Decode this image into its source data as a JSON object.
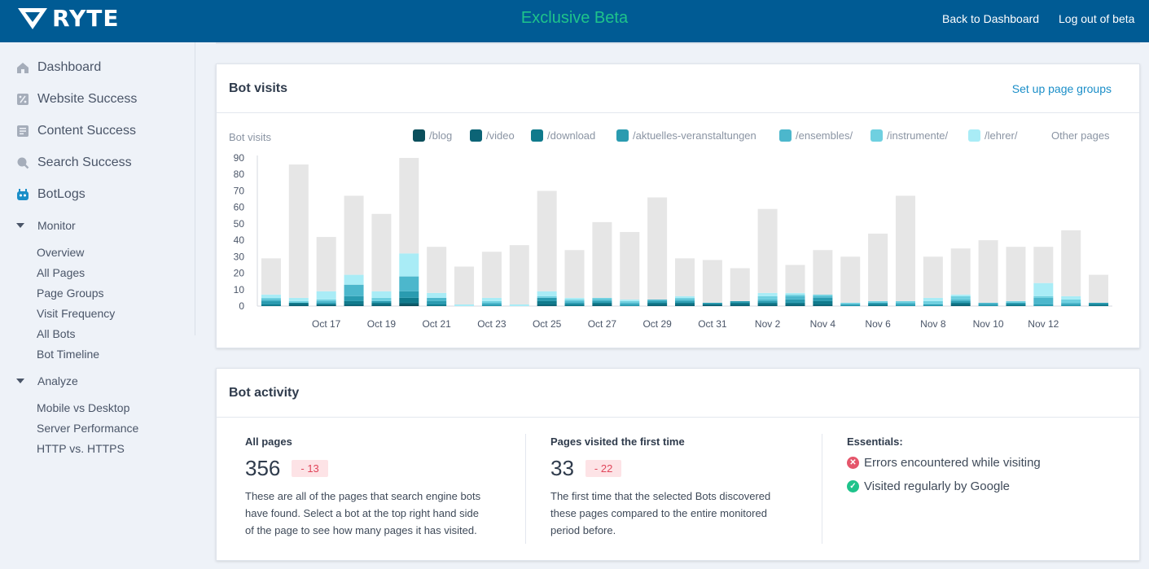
{
  "header": {
    "logo_text": "RYTE",
    "beta_label": "Exclusive Beta",
    "back_link": "Back to Dashboard",
    "logout_link": "Log out of beta",
    "colors": {
      "bar": "#005b94",
      "beta": "#1ec38b"
    }
  },
  "sidebar": {
    "items": [
      {
        "label": "Dashboard",
        "icon": "home-icon"
      },
      {
        "label": "Website Success",
        "icon": "percent-icon"
      },
      {
        "label": "Content Success",
        "icon": "document-icon"
      },
      {
        "label": "Search Success",
        "icon": "search-icon"
      },
      {
        "label": "BotLogs",
        "icon": "bot-icon"
      }
    ],
    "groups": [
      {
        "label": "Monitor",
        "items": [
          "Overview",
          "All Pages",
          "Page Groups",
          "Visit Frequency",
          "All Bots",
          "Bot Timeline"
        ]
      },
      {
        "label": "Analyze",
        "items": [
          "Mobile vs Desktop",
          "Server Performance",
          "HTTP vs. HTTPS"
        ]
      }
    ]
  },
  "bot_visits": {
    "title": "Bot visits",
    "link": "Set up page groups",
    "y_label": "Bot visits",
    "legend": [
      {
        "label": "/blog",
        "color": "#0b4f5c"
      },
      {
        "label": "/video",
        "color": "#0c6476"
      },
      {
        "label": "/download",
        "color": "#107a8c"
      },
      {
        "label": "/aktuelles-veranstaltungen",
        "color": "#2a9bb0"
      },
      {
        "label": "/ensembles/",
        "color": "#4cb7cc"
      },
      {
        "label": "/instrumente/",
        "color": "#6fd0e0"
      },
      {
        "label": "/lehrer/",
        "color": "#a9ecf6"
      },
      {
        "label": "Other pages",
        "color": "#e6e6e6"
      }
    ]
  },
  "chart_data": {
    "type": "bar",
    "stacked": true,
    "title": "",
    "ylabel": "Bot visits",
    "ylim": [
      0,
      90
    ],
    "yticks": [
      0,
      10,
      20,
      30,
      40,
      50,
      60,
      70,
      80,
      90
    ],
    "grid": false,
    "legend_position": "top",
    "categories": [
      "Oct 15",
      "Oct 16",
      "Oct 17",
      "Oct 18",
      "Oct 19",
      "Oct 20",
      "Oct 21",
      "Oct 22",
      "Oct 23",
      "Oct 24",
      "Oct 25",
      "Oct 26",
      "Oct 27",
      "Oct 28",
      "Oct 29",
      "Oct 30",
      "Oct 31",
      "Nov 1",
      "Nov 2",
      "Nov 3",
      "Nov 4",
      "Nov 5",
      "Nov 6",
      "Nov 7",
      "Nov 8",
      "Nov 9",
      "Nov 10",
      "Nov 11",
      "Nov 12",
      "Nov 13",
      "Nov 14"
    ],
    "x_tick_labels": [
      "Oct 17",
      "Oct 19",
      "Oct 21",
      "Oct 23",
      "Oct 25",
      "Oct 27",
      "Oct 29",
      "Oct 31",
      "Nov 2",
      "Nov 4",
      "Nov 6",
      "Nov 8",
      "Nov 10",
      "Nov 12"
    ],
    "series": [
      {
        "name": "/blog",
        "values": [
          0,
          0,
          0,
          0,
          0,
          1,
          0,
          0,
          0,
          0,
          0,
          0,
          0,
          0,
          0,
          0,
          0,
          0,
          0,
          0,
          0,
          0,
          0,
          0,
          0,
          0,
          0,
          0,
          0,
          0,
          0
        ]
      },
      {
        "name": "/video",
        "values": [
          0,
          1,
          1,
          1,
          1,
          1,
          0,
          0,
          0,
          0,
          1,
          0,
          1,
          0,
          1,
          1,
          1,
          1,
          1,
          1,
          1,
          0,
          0,
          0,
          0,
          1,
          0,
          0,
          0,
          0,
          0
        ]
      },
      {
        "name": "/download",
        "values": [
          1,
          1,
          0,
          2,
          1,
          3,
          1,
          0,
          0,
          0,
          2,
          1,
          1,
          0,
          1,
          1,
          0,
          1,
          1,
          1,
          2,
          0,
          1,
          0,
          0,
          1,
          0,
          1,
          0,
          0,
          1
        ]
      },
      {
        "name": "/aktuelles-veranstaltungen",
        "values": [
          2,
          0,
          1,
          3,
          1,
          4,
          2,
          0,
          1,
          0,
          2,
          1,
          1,
          1,
          1,
          1,
          1,
          1,
          1,
          2,
          2,
          1,
          1,
          1,
          1,
          1,
          1,
          1,
          1,
          1,
          1
        ]
      },
      {
        "name": "/ensembles/",
        "values": [
          1,
          0,
          1,
          7,
          0,
          9,
          2,
          0,
          1,
          0,
          0,
          1,
          1,
          1,
          1,
          1,
          0,
          0,
          1,
          2,
          1,
          0,
          0,
          1,
          0,
          1,
          1,
          0,
          4,
          1,
          0
        ]
      },
      {
        "name": "/instrumente/",
        "values": [
          1,
          1,
          1,
          0,
          2,
          0,
          0,
          0,
          1,
          0,
          1,
          1,
          1,
          1,
          0,
          1,
          0,
          0,
          2,
          1,
          1,
          1,
          1,
          1,
          2,
          2,
          0,
          1,
          1,
          2,
          0
        ]
      },
      {
        "name": "/lehrer/",
        "values": [
          2,
          2,
          5,
          6,
          4,
          14,
          3,
          1,
          2,
          1,
          3,
          1,
          0,
          1,
          0,
          1,
          0,
          0,
          2,
          1,
          0,
          0,
          0,
          0,
          2,
          1,
          0,
          0,
          8,
          2,
          0
        ]
      },
      {
        "name": "Other pages",
        "values": [
          22,
          81,
          33,
          48,
          47,
          58,
          28,
          23,
          28,
          36,
          61,
          29,
          46,
          41,
          62,
          23,
          26,
          20,
          51,
          17,
          27,
          28,
          41,
          64,
          25,
          28,
          38,
          33,
          22,
          40,
          17
        ]
      }
    ]
  },
  "bot_activity": {
    "title": "Bot activity",
    "all_pages": {
      "title": "All pages",
      "value": "356",
      "delta": "- 13",
      "desc_lines": [
        "These are all of the pages that search engine bots",
        "have found. Select a bot at the top right hand side",
        "of the page to see how many pages it has visited."
      ]
    },
    "first_time": {
      "title": "Pages visited the first time",
      "value": "33",
      "delta": "- 22",
      "desc_lines": [
        "The first time that the selected Bots discovered",
        "these pages compared to the entire monitored",
        "period before."
      ]
    },
    "essentials": {
      "title": "Essentials:",
      "items": [
        {
          "label": "Errors encountered while visiting",
          "icon": "error-icon",
          "color": "#e5566b"
        },
        {
          "label": "Visited regularly by Google",
          "icon": "check-icon",
          "color": "#1ec38b"
        }
      ]
    }
  }
}
